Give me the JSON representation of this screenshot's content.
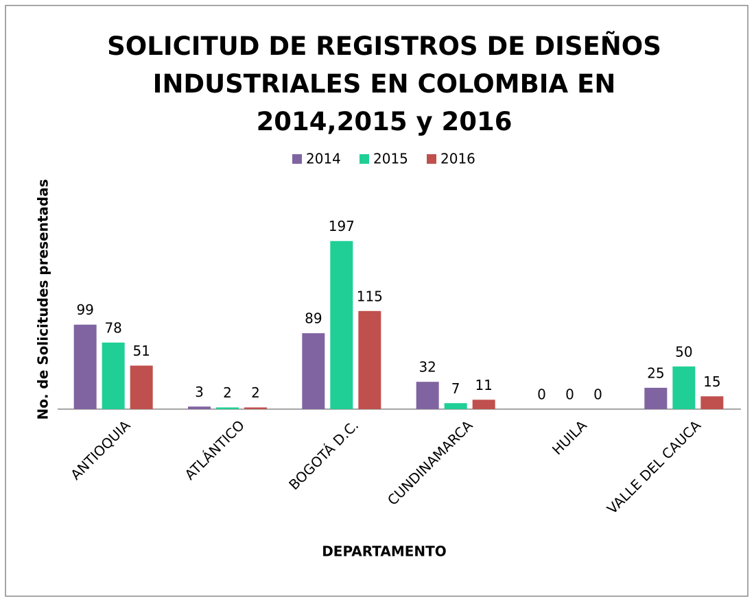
{
  "chart_data": {
    "type": "bar",
    "title": "SOLICITUD DE REGISTROS DE DISEÑOS INDUSTRIALES  EN COLOMBIA EN 2014,2015 y 2016",
    "x_label": "DEPARTAMENTO",
    "y_label": "No. de Solicitudes presentadas",
    "categories": [
      "ANTIOQUIA",
      "ATLÁNTICO",
      "BOGOTÁ D.C.",
      "CUNDINAMARCA",
      "HUILA",
      "VALLE DEL CAUCA"
    ],
    "series": [
      {
        "name": "2014",
        "color": "#8064a2",
        "values": [
          99,
          3,
          89,
          32,
          0,
          25
        ]
      },
      {
        "name": "2015",
        "color": "#1fcf96",
        "values": [
          78,
          2,
          197,
          7,
          0,
          50
        ]
      },
      {
        "name": "2016",
        "color": "#c0504d",
        "values": [
          51,
          2,
          115,
          11,
          0,
          15
        ]
      }
    ],
    "ylim": [
      0,
      200
    ],
    "legend": "top"
  }
}
